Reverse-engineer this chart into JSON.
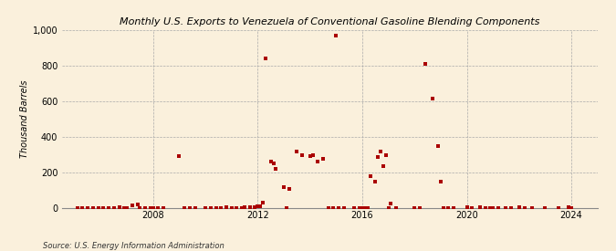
{
  "title": "Monthly U.S. Exports to Venezuela of Conventional Gasoline Blending Components",
  "ylabel": "Thousand Barrels",
  "source": "Source: U.S. Energy Information Administration",
  "background_color": "#faf0dc",
  "marker_color": "#aa0000",
  "marker_size": 5,
  "ylim": [
    0,
    1000
  ],
  "yticks": [
    0,
    200,
    400,
    600,
    800,
    1000
  ],
  "ytick_labels": [
    "0",
    "200",
    "400",
    "600",
    "800",
    "1,000"
  ],
  "xlim_start": 2004.5,
  "xlim_end": 2025.0,
  "xticks": [
    2008,
    2012,
    2016,
    2020,
    2024
  ],
  "data_points": [
    [
      2005.1,
      0
    ],
    [
      2005.3,
      0
    ],
    [
      2005.5,
      0
    ],
    [
      2005.7,
      0
    ],
    [
      2005.9,
      0
    ],
    [
      2006.1,
      0
    ],
    [
      2006.3,
      2
    ],
    [
      2006.5,
      0
    ],
    [
      2006.7,
      8
    ],
    [
      2006.9,
      0
    ],
    [
      2007.0,
      0
    ],
    [
      2007.2,
      15
    ],
    [
      2007.4,
      20
    ],
    [
      2007.5,
      0
    ],
    [
      2007.7,
      0
    ],
    [
      2007.9,
      0
    ],
    [
      2008.0,
      0
    ],
    [
      2008.2,
      0
    ],
    [
      2008.4,
      0
    ],
    [
      2009.0,
      295
    ],
    [
      2009.2,
      0
    ],
    [
      2009.4,
      0
    ],
    [
      2009.6,
      0
    ],
    [
      2010.0,
      0
    ],
    [
      2010.2,
      0
    ],
    [
      2010.4,
      0
    ],
    [
      2010.6,
      0
    ],
    [
      2010.8,
      8
    ],
    [
      2011.0,
      0
    ],
    [
      2011.2,
      0
    ],
    [
      2011.4,
      0
    ],
    [
      2011.5,
      8
    ],
    [
      2011.7,
      8
    ],
    [
      2011.9,
      8
    ],
    [
      2012.0,
      10
    ],
    [
      2012.1,
      12
    ],
    [
      2012.2,
      30
    ],
    [
      2012.3,
      840
    ],
    [
      2012.5,
      260
    ],
    [
      2012.6,
      250
    ],
    [
      2012.7,
      220
    ],
    [
      2013.0,
      120
    ],
    [
      2013.1,
      0
    ],
    [
      2013.2,
      110
    ],
    [
      2013.5,
      320
    ],
    [
      2013.7,
      300
    ],
    [
      2014.0,
      295
    ],
    [
      2014.1,
      300
    ],
    [
      2014.3,
      260
    ],
    [
      2014.5,
      280
    ],
    [
      2014.7,
      0
    ],
    [
      2014.9,
      0
    ],
    [
      2015.0,
      970
    ],
    [
      2015.1,
      0
    ],
    [
      2015.3,
      0
    ],
    [
      2015.7,
      0
    ],
    [
      2015.9,
      0
    ],
    [
      2016.0,
      0
    ],
    [
      2016.1,
      0
    ],
    [
      2016.2,
      0
    ],
    [
      2016.3,
      180
    ],
    [
      2016.5,
      150
    ],
    [
      2016.6,
      290
    ],
    [
      2016.7,
      320
    ],
    [
      2016.8,
      235
    ],
    [
      2016.9,
      300
    ],
    [
      2017.0,
      0
    ],
    [
      2017.1,
      25
    ],
    [
      2017.3,
      0
    ],
    [
      2018.0,
      0
    ],
    [
      2018.2,
      0
    ],
    [
      2018.4,
      810
    ],
    [
      2018.7,
      615
    ],
    [
      2018.9,
      350
    ],
    [
      2019.0,
      150
    ],
    [
      2019.1,
      0
    ],
    [
      2019.3,
      0
    ],
    [
      2019.5,
      0
    ],
    [
      2020.0,
      8
    ],
    [
      2020.2,
      0
    ],
    [
      2020.5,
      8
    ],
    [
      2020.7,
      0
    ],
    [
      2020.9,
      0
    ],
    [
      2021.0,
      0
    ],
    [
      2021.2,
      0
    ],
    [
      2021.5,
      0
    ],
    [
      2021.7,
      0
    ],
    [
      2022.0,
      8
    ],
    [
      2022.2,
      0
    ],
    [
      2022.5,
      0
    ],
    [
      2023.0,
      0
    ],
    [
      2023.5,
      0
    ],
    [
      2023.9,
      8
    ],
    [
      2024.0,
      0
    ]
  ]
}
